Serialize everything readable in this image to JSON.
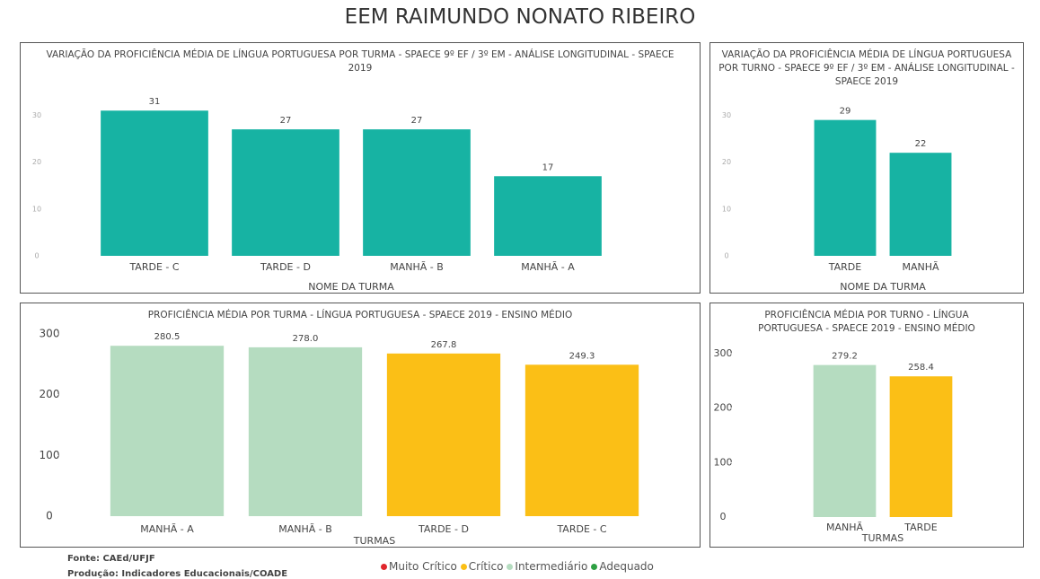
{
  "title": "EEM RAIMUNDO NONATO RIBEIRO",
  "footer": [
    "Fonte: CAEd/UFJF",
    "Produção: Indicadores Educacionais/COADE"
  ],
  "legend": [
    {
      "name": "Muito Crítico",
      "color": "#e0262c"
    },
    {
      "name": "Crítico",
      "color": "#fbbf16"
    },
    {
      "name": "Intermediário",
      "color": "#b5dcc0"
    },
    {
      "name": "Adequado",
      "color": "#2ea043"
    }
  ],
  "chart_data": [
    {
      "type": "bar",
      "title": "VARIAÇÃO DA PROFICIÊNCIA MÉDIA DE LÍNGUA PORTUGUESA POR TURMA - SPAECE 9º EF / 3º EM - ANÁLISE LONGITUDINAL - SPAECE 2019",
      "categories": [
        "TARDE - C",
        "TARDE - D",
        "MANHÃ - B",
        "MANHÃ - A"
      ],
      "values": [
        31,
        27,
        27,
        17
      ],
      "colors": [
        "#17b3a3",
        "#17b3a3",
        "#17b3a3",
        "#17b3a3"
      ],
      "xlabel": "NOME DA TURMA",
      "ylim": [
        0,
        32
      ],
      "yticks": [
        0,
        10,
        20,
        30
      ]
    },
    {
      "type": "bar",
      "title": "VARIAÇÃO DA PROFICIÊNCIA MÉDIA DE LÍNGUA PORTUGUESA POR TURNO - SPAECE 9º EF / 3º EM - ANÁLISE LONGITUDINAL - SPAECE 2019",
      "categories": [
        "TARDE",
        "MANHÃ"
      ],
      "values": [
        29,
        22
      ],
      "colors": [
        "#17b3a3",
        "#17b3a3"
      ],
      "xlabel": "NOME DA TURMA",
      "ylim": [
        0,
        32
      ],
      "yticks": [
        0,
        10,
        20,
        30
      ]
    },
    {
      "type": "bar",
      "title": "PROFICIÊNCIA MÉDIA POR TURMA - LÍNGUA PORTUGUESA - SPAECE 2019 - ENSINO MÉDIO",
      "categories": [
        "MANHÃ - A",
        "MANHÃ - B",
        "TARDE - D",
        "TARDE - C"
      ],
      "values": [
        280.5,
        278,
        267.8,
        249.3
      ],
      "value_labels": [
        "280.5",
        "278.0",
        "267.8",
        "249.3"
      ],
      "colors": [
        "#b5dcc0",
        "#b5dcc0",
        "#fbbf16",
        "#fbbf16"
      ],
      "xlabel": "TURMAS",
      "ylim": [
        0,
        300
      ],
      "yticks": [
        0,
        100,
        200,
        300
      ]
    },
    {
      "type": "bar",
      "title": "PROFICIÊNCIA MÉDIA POR TURNO - LÍNGUA PORTUGUESA - SPAECE 2019 - ENSINO MÉDIO",
      "categories": [
        "MANHÃ",
        "TARDE"
      ],
      "values": [
        279.2,
        258.4
      ],
      "colors": [
        "#b5dcc0",
        "#fbbf16"
      ],
      "xlabel": "TURMAS",
      "ylim": [
        0,
        300
      ],
      "yticks": [
        0,
        100,
        200,
        300
      ]
    }
  ]
}
